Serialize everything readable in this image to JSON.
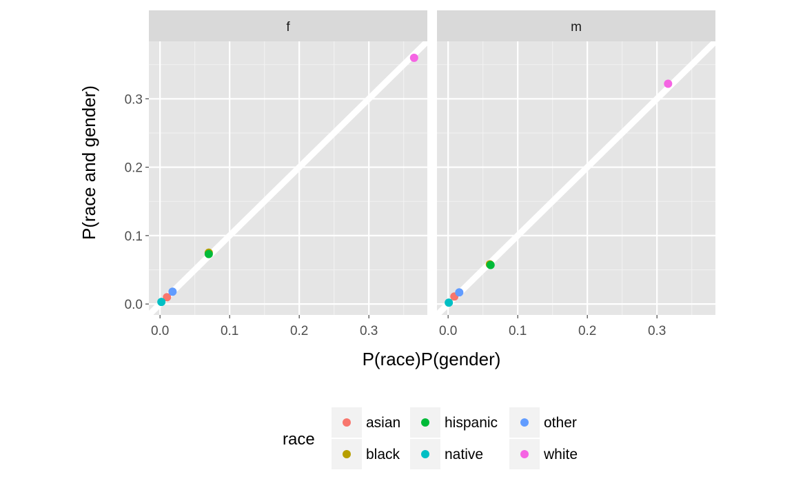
{
  "chart_data": {
    "type": "scatter",
    "facets": [
      {
        "label": "f",
        "points": [
          {
            "race": "asian",
            "x": 0.01,
            "y": 0.01
          },
          {
            "race": "black",
            "x": 0.07,
            "y": 0.075
          },
          {
            "race": "hispanic",
            "x": 0.07,
            "y": 0.073
          },
          {
            "race": "native",
            "x": 0.002,
            "y": 0.003
          },
          {
            "race": "other",
            "x": 0.018,
            "y": 0.018
          },
          {
            "race": "white",
            "x": 0.365,
            "y": 0.36
          }
        ]
      },
      {
        "label": "m",
        "points": [
          {
            "race": "asian",
            "x": 0.009,
            "y": 0.011
          },
          {
            "race": "black",
            "x": 0.06,
            "y": 0.058
          },
          {
            "race": "hispanic",
            "x": 0.061,
            "y": 0.057
          },
          {
            "race": "native",
            "x": 0.001,
            "y": 0.002
          },
          {
            "race": "other",
            "x": 0.016,
            "y": 0.017
          },
          {
            "race": "white",
            "x": 0.316,
            "y": 0.322
          }
        ]
      }
    ],
    "reference_line": {
      "slope": 1,
      "intercept": 0,
      "color": "#ffffff"
    },
    "xlabel": "P(race)P(gender)",
    "ylabel": "P(race and gender)",
    "xlim": [
      -0.016,
      0.384
    ],
    "ylim": [
      -0.016,
      0.384
    ],
    "x_ticks": [
      0.0,
      0.1,
      0.2,
      0.3
    ],
    "x_tick_labels": [
      "0.0",
      "0.1",
      "0.2",
      "0.3"
    ],
    "y_ticks": [
      0.0,
      0.1,
      0.2,
      0.3
    ],
    "y_tick_labels": [
      "0.0",
      "0.1",
      "0.2",
      "0.3"
    ],
    "grid": true,
    "panel_background": "#e5e5e5",
    "strip_background": "#d9d9d9",
    "legend": {
      "title": "race",
      "position": "bottom",
      "items": [
        {
          "label": "asian",
          "color": "#F8766D"
        },
        {
          "label": "black",
          "color": "#B79F00"
        },
        {
          "label": "hispanic",
          "color": "#00BA38"
        },
        {
          "label": "native",
          "color": "#00BFC4"
        },
        {
          "label": "other",
          "color": "#619CFF"
        },
        {
          "label": "white",
          "color": "#F564E3"
        }
      ]
    }
  }
}
